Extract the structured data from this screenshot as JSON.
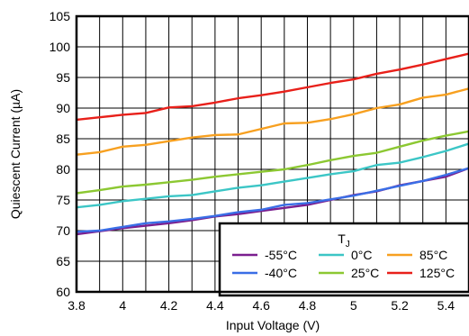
{
  "chart_data": {
    "type": "line",
    "title": "",
    "xlabel": "Input Voltage (V)",
    "ylabel": "Quiescent Current (µA)",
    "xlim": [
      3.8,
      5.5
    ],
    "ylim": [
      60,
      105
    ],
    "xticks": [
      3.8,
      4,
      4.2,
      4.4,
      4.6,
      4.8,
      5,
      5.2,
      5.4
    ],
    "xtick_labels": [
      "3.8",
      "4",
      "4.2",
      "4.4",
      "4.6",
      "4.8",
      "5",
      "5.2",
      "5.4"
    ],
    "yticks": [
      60,
      65,
      70,
      75,
      80,
      85,
      90,
      95,
      100,
      105
    ],
    "ytick_labels": [
      "60",
      "65",
      "70",
      "75",
      "80",
      "85",
      "90",
      "95",
      "100",
      "105"
    ],
    "grid": true,
    "legend": {
      "placement": "bottom-right",
      "title_main": "T",
      "title_sub": "J"
    },
    "x": [
      3.8,
      3.9,
      4.0,
      4.1,
      4.2,
      4.3,
      4.4,
      4.5,
      4.6,
      4.7,
      4.8,
      4.9,
      5.0,
      5.1,
      5.2,
      5.3,
      5.4,
      5.5
    ],
    "series": [
      {
        "name": "-55°C",
        "color": "#7b1f8f",
        "values": [
          69.4,
          69.9,
          70.4,
          70.8,
          71.2,
          71.7,
          72.3,
          72.7,
          73.2,
          73.7,
          74.2,
          75.0,
          75.8,
          76.4,
          77.4,
          78.1,
          78.8,
          80.2
        ]
      },
      {
        "name": "-40°C",
        "color": "#3a6ee6",
        "values": [
          69.8,
          70.0,
          70.6,
          71.2,
          71.5,
          71.9,
          72.4,
          73.0,
          73.4,
          74.2,
          74.5,
          75.1,
          75.7,
          76.5,
          77.3,
          78.1,
          79.1,
          80.2
        ]
      },
      {
        "name": "0°C",
        "color": "#3cc6c6",
        "values": [
          73.8,
          74.2,
          74.8,
          75.2,
          75.6,
          75.8,
          76.4,
          77.0,
          77.4,
          78.0,
          78.6,
          79.2,
          79.7,
          80.7,
          81.1,
          82.0,
          83.0,
          84.2
        ]
      },
      {
        "name": "25°C",
        "color": "#8cc832",
        "values": [
          76.1,
          76.6,
          77.2,
          77.5,
          77.9,
          78.3,
          78.8,
          79.2,
          79.6,
          80.0,
          80.7,
          81.5,
          82.2,
          82.7,
          83.7,
          84.7,
          85.5,
          86.2
        ]
      },
      {
        "name": "85°C",
        "color": "#f7a020",
        "values": [
          82.4,
          82.8,
          83.7,
          84.0,
          84.6,
          85.2,
          85.6,
          85.7,
          86.6,
          87.5,
          87.6,
          88.2,
          89.0,
          90.0,
          90.6,
          91.7,
          92.2,
          93.2
        ]
      },
      {
        "name": "125°C",
        "color": "#e8201a",
        "values": [
          88.1,
          88.5,
          88.9,
          89.2,
          90.1,
          90.3,
          90.9,
          91.6,
          92.1,
          92.7,
          93.4,
          94.1,
          94.7,
          95.6,
          96.3,
          97.1,
          98.0,
          98.9
        ]
      }
    ]
  }
}
